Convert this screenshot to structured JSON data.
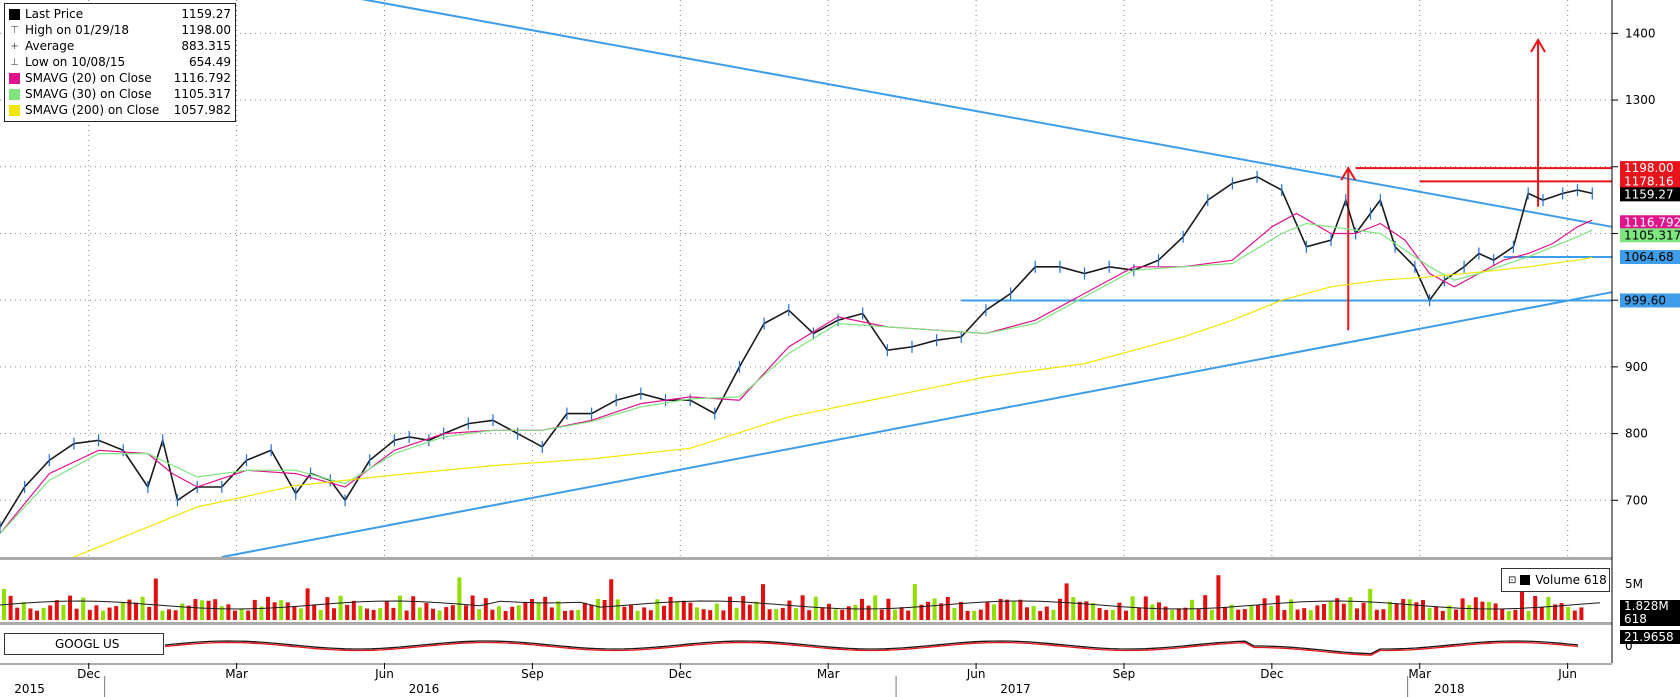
{
  "legend": [
    {
      "name": "Last Price",
      "value": "1159.27",
      "color": "#000000",
      "icon": "square-filled-icon"
    },
    {
      "name": "High on 01/29/18",
      "value": "1198.00",
      "color": "#666666",
      "icon": "high-marker-icon"
    },
    {
      "name": "Average",
      "value": "883.315",
      "color": "#666666",
      "icon": "average-marker-icon"
    },
    {
      "name": "Low on 10/08/15",
      "value": "654.49",
      "color": "#666666",
      "icon": "low-marker-icon"
    },
    {
      "name": "SMAVG (20) on Close",
      "value": "1116.792",
      "color": "#e0138c",
      "icon": "square-filled-icon"
    },
    {
      "name": "SMAVG (30) on Close",
      "value": "1105.317",
      "color": "#7fe57f",
      "icon": "square-filled-icon"
    },
    {
      "name": "SMAVG (200) on Close",
      "value": "1057.982",
      "color": "#f2e600",
      "icon": "square-filled-icon"
    }
  ],
  "volume_legend": {
    "label": "Volume",
    "value": "618"
  },
  "ticker": "GOOGL US",
  "price_tags": [
    {
      "label": "1198.00",
      "value": 1198.0,
      "bg": "#e8141b",
      "fg": "#ffffff"
    },
    {
      "label": "1178.16",
      "value": 1178.16,
      "bg": "#e8141b",
      "fg": "#ffffff"
    },
    {
      "label": "1159.27",
      "value": 1159.27,
      "bg": "#000000",
      "fg": "#ffffff"
    },
    {
      "label": "1116.792",
      "value": 1116.792,
      "bg": "#e0138c",
      "fg": "#ffffff"
    },
    {
      "label": "1105.317",
      "value": 1105.317,
      "bg": "#7fe57f",
      "fg": "#000000"
    },
    {
      "label": "1064.68",
      "value": 1064.68,
      "bg": "#3e9de8",
      "fg": "#000000"
    },
    {
      "label": "999.60",
      "value": 999.6,
      "bg": "#3e9de8",
      "fg": "#000000"
    }
  ],
  "volume_tags": [
    {
      "label": "1.828M",
      "bg": "#000000",
      "fg": "#ffffff"
    },
    {
      "label": "618",
      "bg": "#000000",
      "fg": "#ffffff"
    }
  ],
  "indicator_tag": {
    "label": "21.9658",
    "bg": "#000000",
    "fg": "#ffffff"
  },
  "volume_axis_label": "5M",
  "indicator_axis_label": "0",
  "x_month_labels": [
    {
      "label": "Dec",
      "m": 1.8
    },
    {
      "label": "Mar",
      "m": 4.8
    },
    {
      "label": "Jun",
      "m": 7.8
    },
    {
      "label": "Sep",
      "m": 10.8
    },
    {
      "label": "Dec",
      "m": 13.8
    },
    {
      "label": "Mar",
      "m": 16.8
    },
    {
      "label": "Jun",
      "m": 19.8
    },
    {
      "label": "Sep",
      "m": 22.8
    },
    {
      "label": "Dec",
      "m": 25.8
    },
    {
      "label": "Mar",
      "m": 28.8
    },
    {
      "label": "Jun",
      "m": 31.8
    }
  ],
  "x_year_labels": [
    {
      "label": "2015",
      "m": 0.6
    },
    {
      "label": "2016",
      "m": 8.6
    },
    {
      "label": "2017",
      "m": 20.6
    },
    {
      "label": "2018",
      "m": 29.4
    }
  ],
  "chart_data": {
    "type": "line",
    "title": "",
    "y_ticks": [
      700,
      800,
      900,
      1000,
      1100,
      1200,
      1300,
      1400
    ],
    "ylim": [
      615,
      1450
    ],
    "x_range_months": [
      0,
      32.7
    ],
    "x_note": "x = months since Oct 2015",
    "series": [
      {
        "name": "Last Price",
        "color": "#1a1a1a",
        "x": [
          0,
          0.5,
          1,
          1.5,
          2,
          2.5,
          3,
          3.3,
          3.6,
          4,
          4.5,
          5,
          5.5,
          6,
          6.3,
          6.7,
          7,
          7.5,
          8,
          8.3,
          8.7,
          9,
          9.5,
          10,
          10.5,
          11,
          11.5,
          12,
          12.5,
          13,
          13.5,
          14,
          14.5,
          15,
          15.5,
          16,
          16.5,
          17,
          17.5,
          18,
          18.5,
          19,
          19.5,
          20,
          20.5,
          21,
          21.5,
          22,
          22.5,
          23,
          23.5,
          24,
          24.5,
          25,
          25.5,
          26,
          26.5,
          27,
          27.3,
          27.5,
          27.8,
          28,
          28.3,
          28.7,
          29,
          29.3,
          29.7,
          30,
          30.3,
          30.7,
          31,
          31.3,
          31.7,
          32,
          32.3
        ],
        "values": [
          660,
          720,
          760,
          785,
          790,
          775,
          720,
          790,
          700,
          720,
          720,
          760,
          775,
          710,
          740,
          730,
          700,
          760,
          790,
          795,
          790,
          800,
          815,
          820,
          800,
          780,
          830,
          830,
          850,
          860,
          850,
          850,
          830,
          900,
          965,
          985,
          950,
          970,
          980,
          925,
          930,
          940,
          945,
          985,
          1010,
          1050,
          1050,
          1040,
          1050,
          1045,
          1060,
          1095,
          1150,
          1175,
          1185,
          1165,
          1080,
          1090,
          1150,
          1100,
          1130,
          1150,
          1080,
          1050,
          1000,
          1030,
          1050,
          1070,
          1060,
          1080,
          1160,
          1150,
          1160,
          1165,
          1160
        ]
      },
      {
        "name": "SMAVG (20) on Close",
        "color": "#e0138c",
        "x": [
          0,
          1,
          2,
          3,
          3.5,
          4,
          5,
          6,
          7,
          8,
          9,
          10,
          11,
          12,
          13,
          14,
          15,
          16,
          17,
          18,
          19,
          20,
          21,
          22,
          23,
          24,
          25,
          25.8,
          26.3,
          27,
          27.5,
          28,
          28.5,
          29,
          29.5,
          30,
          30.5,
          31,
          31.5,
          32,
          32.3
        ],
        "values": [
          650,
          740,
          775,
          770,
          740,
          720,
          745,
          740,
          720,
          775,
          800,
          805,
          805,
          820,
          845,
          855,
          850,
          930,
          975,
          960,
          955,
          950,
          970,
          1010,
          1050,
          1050,
          1060,
          1110,
          1130,
          1100,
          1100,
          1115,
          1090,
          1040,
          1020,
          1040,
          1060,
          1070,
          1085,
          1110,
          1120
        ]
      },
      {
        "name": "SMAVG (30) on Close",
        "color": "#7fe57f",
        "x": [
          0,
          1,
          2,
          3,
          4,
          5,
          6,
          7,
          8,
          9,
          10,
          11,
          12,
          13,
          14,
          15,
          16,
          17,
          18,
          19,
          20,
          21,
          22,
          23,
          24,
          25,
          26,
          26.5,
          27,
          28,
          29,
          29.5,
          30,
          31,
          32,
          32.3
        ],
        "values": [
          650,
          730,
          770,
          770,
          735,
          745,
          745,
          725,
          770,
          795,
          805,
          805,
          818,
          840,
          852,
          855,
          920,
          965,
          960,
          955,
          950,
          965,
          1005,
          1045,
          1050,
          1055,
          1100,
          1115,
          1110,
          1100,
          1050,
          1030,
          1040,
          1065,
          1095,
          1105
        ]
      },
      {
        "name": "SMAVG (200) on Close",
        "color": "#f2e600",
        "x": [
          1.5,
          4,
          6,
          8,
          10,
          12,
          14,
          16,
          18,
          20,
          22,
          24,
          25,
          26,
          27,
          28,
          29,
          30,
          31,
          32,
          32.3
        ],
        "values": [
          615,
          690,
          722,
          738,
          752,
          762,
          778,
          825,
          855,
          885,
          905,
          945,
          970,
          1000,
          1020,
          1030,
          1035,
          1042,
          1050,
          1060,
          1064
        ]
      }
    ],
    "volume": {
      "axis_max_label": "5M",
      "avg_color": "#1a1a1a"
    },
    "lines": [
      {
        "name": "resistance",
        "color": "#3e9de8",
        "x1": 5.2,
        "y1": 1480,
        "x2": 32.7,
        "y2": 1110
      },
      {
        "name": "support",
        "color": "#3e9de8",
        "x1": 4.5,
        "y1": 615,
        "x2": 32.7,
        "y2": 1012
      },
      {
        "name": "level-999",
        "color": "#3e9de8",
        "x1": 19.5,
        "y1": 999.6,
        "x2": 32.7,
        "y2": 999.6
      },
      {
        "name": "level-1064",
        "color": "#3e9de8",
        "x1": 30.5,
        "y1": 1064.68,
        "x2": 32.7,
        "y2": 1064.68
      },
      {
        "name": "high-1198",
        "color": "#e8141b",
        "x1": 27.5,
        "y1": 1198,
        "x2": 32.7,
        "y2": 1198
      },
      {
        "name": "level-1178",
        "color": "#e8141b",
        "x1": 28.8,
        "y1": 1178.16,
        "x2": 32.7,
        "y2": 1178.16
      }
    ],
    "arrows": [
      {
        "name": "measured-move-1",
        "color": "#e8141b",
        "x": 27.35,
        "y_from": 955,
        "y_to": 1198
      },
      {
        "name": "measured-move-2",
        "color": "#e8141b",
        "x": 31.2,
        "y_from": 1140,
        "y_to": 1390
      }
    ],
    "grid": true
  }
}
